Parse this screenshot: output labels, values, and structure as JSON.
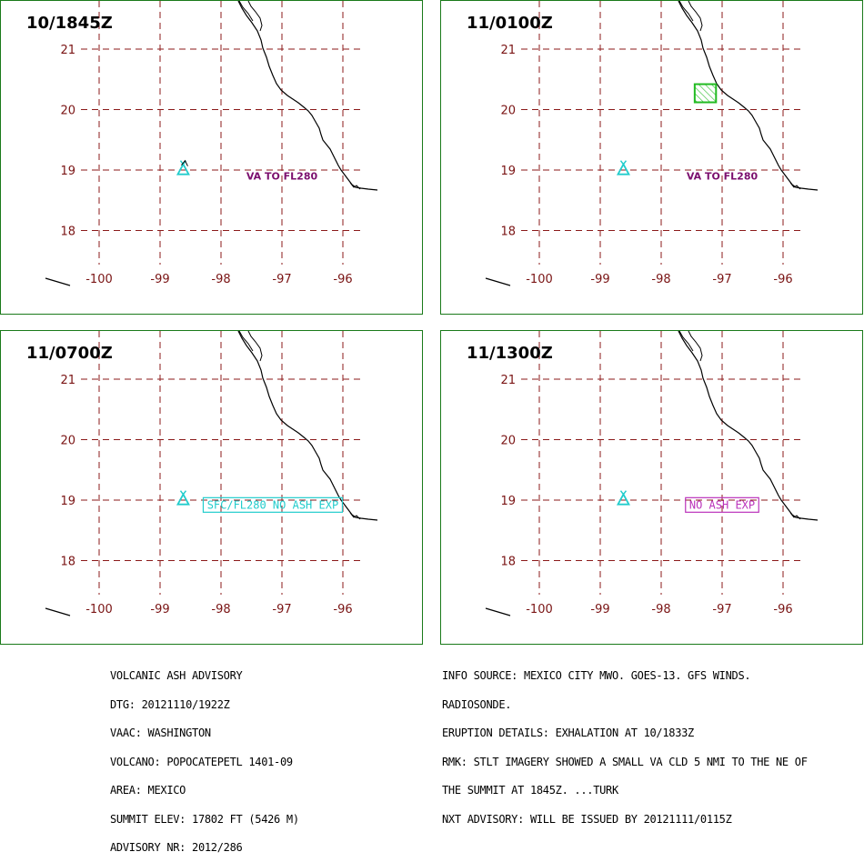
{
  "panels": [
    {
      "id": "p1",
      "title": "10/1845Z",
      "offset": [
        0,
        0
      ],
      "annotation": {
        "text": "VA TO FL280",
        "style": "plain",
        "color": "#7b0f6e",
        "lon": -97.0,
        "lat": 18.95
      },
      "ash_polygon": null,
      "volcano": {
        "lon": -98.62,
        "lat": 19.02,
        "show_plume": true
      }
    },
    {
      "id": "p2",
      "title": "11/0100Z",
      "offset": [
        484,
        0
      ],
      "annotation": {
        "text": "VA TO FL280",
        "style": "plain",
        "color": "#7b0f6e",
        "lon": -97.0,
        "lat": 18.95
      },
      "ash_polygon": {
        "lon_min": -97.45,
        "lon_max": -97.1,
        "lat_min": 20.12,
        "lat_max": 20.42,
        "color": "#22bb22"
      },
      "volcano": {
        "lon": -98.62,
        "lat": 19.02,
        "show_plume": false
      }
    },
    {
      "id": "p3",
      "title": "11/0700Z",
      "offset": [
        0,
        363
      ],
      "annotation": {
        "text": "SFC/FL280 NO ASH EXP",
        "style": "boxed",
        "color": "#22cccc",
        "lon": -97.15,
        "lat": 18.95
      },
      "ash_polygon": null,
      "volcano": {
        "lon": -98.62,
        "lat": 19.02,
        "show_plume": false
      }
    },
    {
      "id": "p4",
      "title": "11/1300Z",
      "offset": [
        484,
        363
      ],
      "annotation": {
        "text": "NO ASH EXP",
        "style": "boxed",
        "color": "#bb33bb",
        "lon": -97.0,
        "lat": 18.95
      },
      "ash_polygon": null,
      "volcano": {
        "lon": -98.62,
        "lat": 19.02,
        "show_plume": false
      }
    }
  ],
  "map": {
    "lat_ticks": [
      21,
      20,
      19,
      18
    ],
    "lon_ticks": [
      -100,
      -99,
      -98,
      -97,
      -96
    ],
    "lat_labels": [
      "21",
      "20",
      "19",
      "18"
    ],
    "lon_labels": [
      "-100",
      "-99",
      "-98",
      "-97",
      "-96"
    ],
    "grid_color": "#8b1a1a",
    "label_color": "#7a1414",
    "coast_color": "#000000",
    "volcano_color": "#22cccc"
  },
  "advisory_left": [
    "VOLCANIC ASH ADVISORY",
    "DTG: 20121110/1922Z",
    "VAAC: WASHINGTON",
    "VOLCANO: POPOCATEPETL 1401-09",
    "AREA: MEXICO",
    "SUMMIT ELEV: 17802 FT (5426 M)",
    "ADVISORY NR: 2012/286"
  ],
  "advisory_right": [
    "INFO SOURCE: MEXICO CITY MWO. GOES-13. GFS WINDS.",
    "RADIOSONDE.",
    "ERUPTION DETAILS: EXHALATION AT 10/1833Z",
    "RMK: STLT IMAGERY SHOWED A SMALL VA CLD 5 NMI TO THE NE OF",
    "THE SUMMIT AT 1845Z. ...TURK",
    "NXT ADVISORY: WILL BE ISSUED BY 20121111/0115Z"
  ]
}
